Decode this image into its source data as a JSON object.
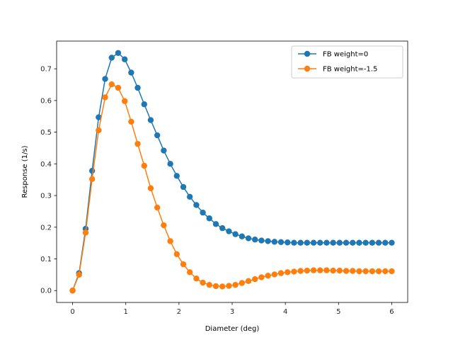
{
  "chart_data": {
    "type": "line",
    "title": "",
    "xlabel": "Diameter (deg)",
    "ylabel": "Response (1/s)",
    "xlim": [
      -0.3,
      6.3
    ],
    "ylim": [
      -0.0375,
      0.7875
    ],
    "xticks": [
      0,
      1,
      2,
      3,
      4,
      5,
      6
    ],
    "yticks": [
      0.0,
      0.1,
      0.2,
      0.3,
      0.4,
      0.5,
      0.6,
      0.7
    ],
    "ytick_labels": [
      "0.0",
      "0.1",
      "0.2",
      "0.3",
      "0.4",
      "0.5",
      "0.6",
      "0.7"
    ],
    "grid": false,
    "legend_position": "top-right",
    "x": [
      0.0,
      0.122,
      0.245,
      0.367,
      0.49,
      0.612,
      0.735,
      0.857,
      0.98,
      1.102,
      1.224,
      1.347,
      1.469,
      1.592,
      1.714,
      1.837,
      1.959,
      2.082,
      2.204,
      2.327,
      2.449,
      2.571,
      2.694,
      2.816,
      2.939,
      3.061,
      3.184,
      3.306,
      3.429,
      3.551,
      3.673,
      3.796,
      3.918,
      4.041,
      4.163,
      4.286,
      4.408,
      4.531,
      4.653,
      4.776,
      4.898,
      5.02,
      5.143,
      5.265,
      5.388,
      5.51,
      5.633,
      5.755,
      5.878,
      6.0
    ],
    "series": [
      {
        "name": "FB weight=0",
        "color": "#1f77b4",
        "marker": "circle",
        "values": [
          0.0,
          0.055,
          0.195,
          0.378,
          0.547,
          0.668,
          0.735,
          0.75,
          0.73,
          0.688,
          0.64,
          0.588,
          0.538,
          0.49,
          0.442,
          0.4,
          0.362,
          0.327,
          0.296,
          0.27,
          0.246,
          0.228,
          0.21,
          0.197,
          0.187,
          0.178,
          0.171,
          0.165,
          0.161,
          0.158,
          0.156,
          0.154,
          0.153,
          0.152,
          0.151,
          0.151,
          0.151,
          0.151,
          0.151,
          0.151,
          0.151,
          0.151,
          0.151,
          0.151,
          0.151,
          0.151,
          0.151,
          0.151,
          0.151,
          0.151
        ]
      },
      {
        "name": "FB weight=-1.5",
        "color": "#ff7f0e",
        "marker": "circle",
        "values": [
          0.0,
          0.05,
          0.183,
          0.352,
          0.506,
          0.61,
          0.651,
          0.64,
          0.598,
          0.533,
          0.463,
          0.394,
          0.323,
          0.262,
          0.206,
          0.156,
          0.115,
          0.083,
          0.058,
          0.038,
          0.025,
          0.018,
          0.014,
          0.013,
          0.015,
          0.018,
          0.024,
          0.03,
          0.036,
          0.042,
          0.047,
          0.051,
          0.055,
          0.058,
          0.06,
          0.062,
          0.063,
          0.064,
          0.064,
          0.064,
          0.063,
          0.063,
          0.062,
          0.062,
          0.061,
          0.061,
          0.061,
          0.061,
          0.061,
          0.061
        ]
      }
    ]
  }
}
